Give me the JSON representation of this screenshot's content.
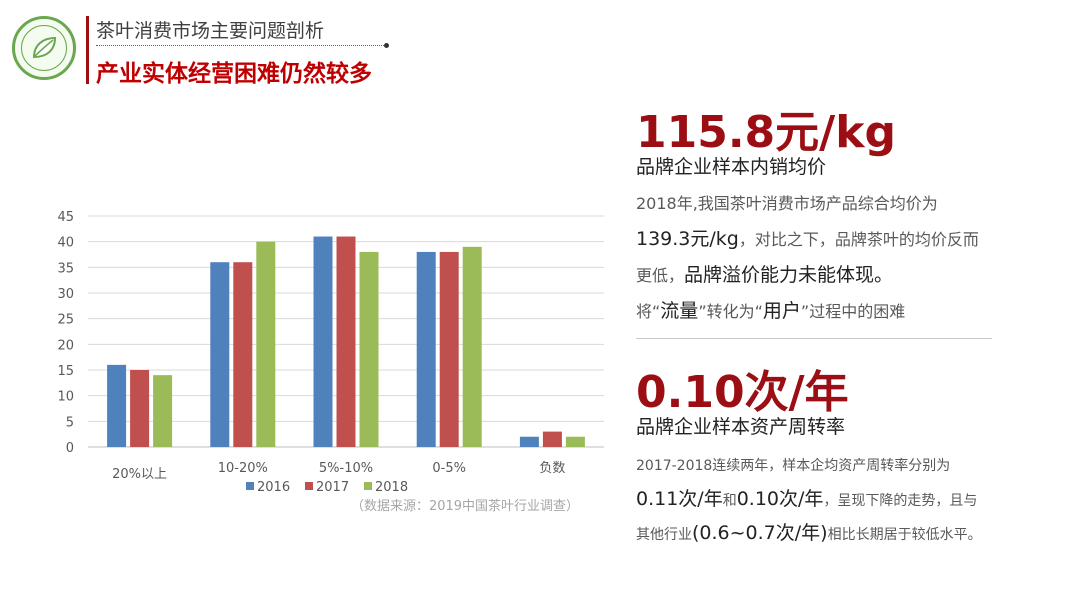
{
  "header": {
    "subtitle": "茶叶消费市场主要问题剖析",
    "title": "产业实体经营困难仍然较多"
  },
  "chart_data": {
    "type": "bar",
    "categories": [
      "20%以上",
      "10-20%",
      "5%-10%",
      "0-5%",
      "负数"
    ],
    "series": [
      {
        "name": "2016",
        "values": [
          16,
          36,
          41,
          38,
          2
        ],
        "color": "#4f81bd"
      },
      {
        "name": "2017",
        "values": [
          15,
          36,
          41,
          38,
          3
        ],
        "color": "#c0504d"
      },
      {
        "name": "2018",
        "values": [
          14,
          40,
          38,
          39,
          2
        ],
        "color": "#9bbb59"
      }
    ],
    "ylim": [
      0,
      45
    ],
    "yticks": [
      0,
      5,
      10,
      15,
      20,
      25,
      30,
      35,
      40,
      45
    ],
    "grid": true,
    "legend": "bottom",
    "source_note": "（数据来源：2019中国茶叶行业调查）"
  },
  "stat1": {
    "value": "115.8元/kg",
    "label": "品牌企业样本内销均价",
    "line1": "2018年,我国茶叶消费市场产品综合均价为",
    "line2_em": "139.3元/kg",
    "line2_rest": "，对比之下，品牌茶叶的均价反而",
    "line3_a": "更低，",
    "line3_em": "品牌溢价能力未能体现。",
    "line4_a": "将“",
    "line4_em1": "流量",
    "line4_b": "”转化为“",
    "line4_em2": "用户",
    "line4_c": "”过程中的困难"
  },
  "stat2": {
    "value": "0.10次/年",
    "label": "品牌企业样本资产周转率",
    "line1": "2017-2018连续两年，样本企均资产周转率分别为",
    "line2_em1": "0.11次/年",
    "line2_a": "和",
    "line2_em2": "0.10次/年",
    "line2_rest": "，呈现下降的走势，且与",
    "line3_a": "其他行业",
    "line3_em": "(0.6~0.7次/年)",
    "line3_rest": "相比长期居于较低水平。"
  },
  "colors": {
    "accent": "#9a0e14",
    "title_red": "#c00000",
    "logo_green": "#6aa84f"
  },
  "icons": {
    "logo": "tea-leaf-logo"
  }
}
